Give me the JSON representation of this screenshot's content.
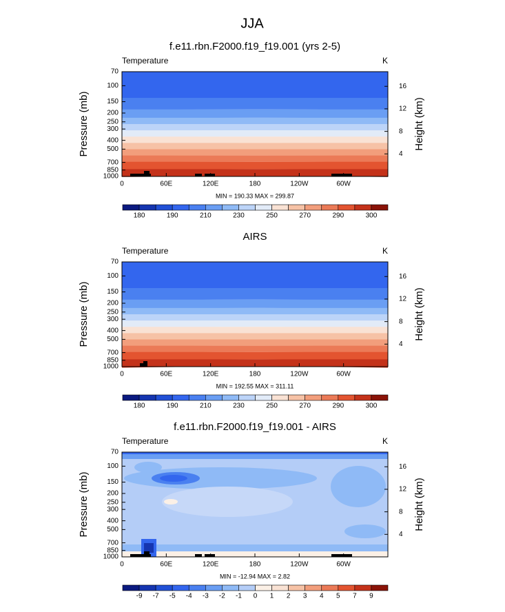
{
  "title": "JJA",
  "chart_data": [
    {
      "type": "contour",
      "title": "f.e11.rbn.F2000.f19_f19.001 (yrs 2-5)",
      "left_label": "Temperature",
      "right_label": "K",
      "stats": "MIN = 190.33  MAX = 299.87",
      "xlim": [
        0,
        360
      ],
      "xticks": [
        0,
        {
          "value": 60,
          "label": "60E"
        },
        {
          "value": 120,
          "label": "120E"
        },
        180,
        {
          "value": 240,
          "label": "120W"
        },
        {
          "value": 300,
          "label": "60W"
        }
      ],
      "ylabel": "Pressure (mb)",
      "ylim": [
        1000,
        70
      ],
      "log_y": true,
      "yticks": [
        70,
        100,
        150,
        200,
        250,
        300,
        400,
        500,
        700,
        850,
        1000
      ],
      "y2label": "Height (km)",
      "y2lim": [
        0,
        18.6
      ],
      "y2ticks": [
        4,
        8,
        12,
        16
      ],
      "colorbar": {
        "colors": [
          "#0b1a80",
          "#1535b0",
          "#2150d6",
          "#3366ee",
          "#4a80f0",
          "#6a9ef3",
          "#8fbaf6",
          "#bcd4f8",
          "#e2ebf8",
          "#f9e2d4",
          "#f6c2a6",
          "#f29e7c",
          "#eb7a57",
          "#e35430",
          "#c4321a",
          "#8a1308"
        ],
        "ticks": [
          180,
          190,
          210,
          230,
          250,
          270,
          290,
          300
        ]
      }
    },
    {
      "type": "contour",
      "title": "AIRS",
      "left_label": "Temperature",
      "right_label": "K",
      "stats": "MIN = 192.55  MAX = 311.11",
      "xlim": [
        0,
        360
      ],
      "xticks": [
        0,
        {
          "value": 60,
          "label": "60E"
        },
        {
          "value": 120,
          "label": "120E"
        },
        180,
        {
          "value": 240,
          "label": "120W"
        },
        {
          "value": 300,
          "label": "60W"
        }
      ],
      "ylabel": "Pressure (mb)",
      "ylim": [
        1000,
        70
      ],
      "log_y": true,
      "yticks": [
        70,
        100,
        150,
        200,
        250,
        300,
        400,
        500,
        700,
        850,
        1000
      ],
      "y2label": "Height (km)",
      "y2lim": [
        0,
        18.6
      ],
      "y2ticks": [
        4,
        8,
        12,
        16
      ],
      "colorbar": {
        "colors": [
          "#0b1a80",
          "#1535b0",
          "#2150d6",
          "#3366ee",
          "#4a80f0",
          "#6a9ef3",
          "#8fbaf6",
          "#bcd4f8",
          "#e2ebf8",
          "#f9e2d4",
          "#f6c2a6",
          "#f29e7c",
          "#eb7a57",
          "#e35430",
          "#c4321a",
          "#8a1308"
        ],
        "ticks": [
          180,
          190,
          210,
          230,
          250,
          270,
          290,
          300
        ]
      }
    },
    {
      "type": "contour",
      "title": "f.e11.rbn.F2000.f19_f19.001 - AIRS",
      "left_label": "Temperature",
      "right_label": "K",
      "stats": "MIN = -12.94  MAX =  2.82",
      "xlim": [
        0,
        360
      ],
      "xticks": [
        0,
        {
          "value": 60,
          "label": "60E"
        },
        {
          "value": 120,
          "label": "120E"
        },
        180,
        {
          "value": 240,
          "label": "120W"
        },
        {
          "value": 300,
          "label": "60W"
        }
      ],
      "ylabel": "Pressure (mb)",
      "ylim": [
        1000,
        70
      ],
      "log_y": true,
      "yticks": [
        70,
        100,
        150,
        200,
        250,
        300,
        400,
        500,
        700,
        850,
        1000
      ],
      "y2label": "Height (km)",
      "y2lim": [
        0,
        18.6
      ],
      "y2ticks": [
        4,
        8,
        12,
        16
      ],
      "colorbar": {
        "colors": [
          "#0b1a80",
          "#1535b0",
          "#2150d6",
          "#3366ee",
          "#4a80f0",
          "#6a9ef3",
          "#8fbaf6",
          "#b4cdf7",
          "#fbf0e6",
          "#f9e2d4",
          "#f6c2a6",
          "#f29e7c",
          "#eb7a57",
          "#e35430",
          "#c4321a",
          "#8a1308"
        ],
        "ticks": [
          -9,
          -7,
          -5,
          -4,
          -3,
          -2,
          -1,
          0,
          1,
          2,
          3,
          4,
          5,
          7,
          9
        ]
      }
    }
  ]
}
